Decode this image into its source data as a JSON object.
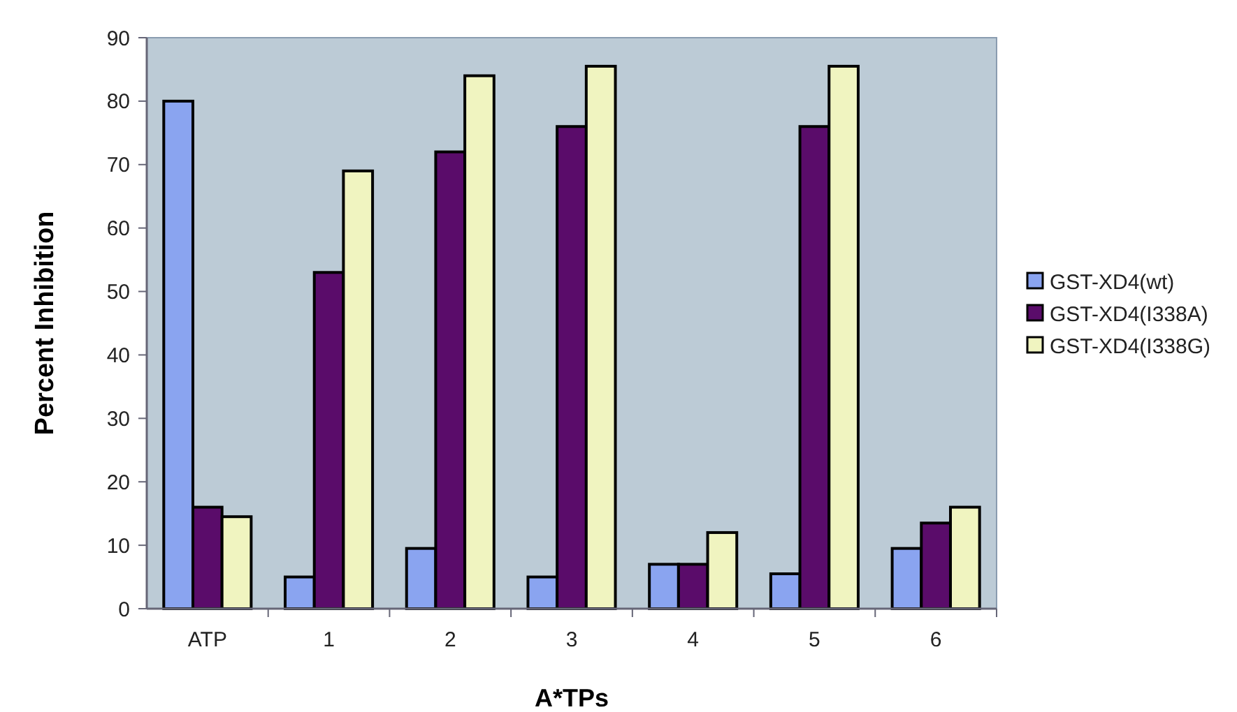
{
  "chart_data": {
    "type": "bar",
    "xlabel": "A*TPs",
    "ylabel": "Percent Inhibition",
    "categories": [
      "ATP",
      "1",
      "2",
      "3",
      "4",
      "5",
      "6"
    ],
    "series": [
      {
        "name": "GST-XD4(wt)",
        "color": "#8aa4f0",
        "values": [
          80,
          5,
          9.5,
          5,
          7,
          5.5,
          9.5
        ]
      },
      {
        "name": "GST-XD4(I338A)",
        "color": "#5a0c6a",
        "values": [
          16,
          53,
          72,
          76,
          7,
          76,
          13.5
        ]
      },
      {
        "name": "GST-XD4(I338G)",
        "color": "#f0f4c0",
        "values": [
          14.5,
          69,
          84,
          85.5,
          12,
          85.5,
          16
        ]
      }
    ],
    "ylim": [
      0,
      90
    ],
    "yticks": [
      0,
      10,
      20,
      30,
      40,
      50,
      60,
      70,
      80,
      90
    ],
    "grid": false,
    "legend": "right"
  }
}
